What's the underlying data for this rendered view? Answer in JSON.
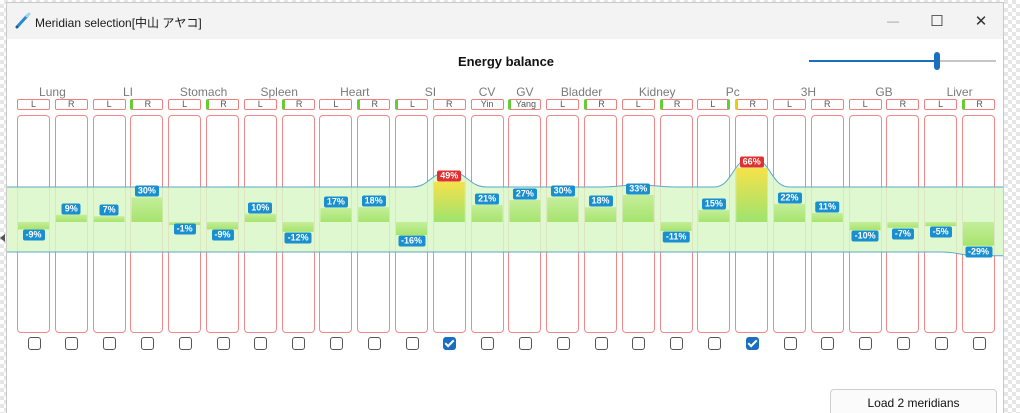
{
  "window": {
    "title": "Meridian selection[中山 アヤコ]"
  },
  "window_controls": {
    "minimize": "—",
    "maximize": "☐",
    "close": "✕"
  },
  "header": {
    "title": "Energy balance"
  },
  "slider": {
    "value": 0.58
  },
  "colors": {
    "accent": "#1a6fc0",
    "band_fill": "#d9f7c8",
    "band_edge": "#5aa9c8",
    "value_badge": "#1a8fd0",
    "hot_badge": "#e03030",
    "column_border": "#f08a8a"
  },
  "meridians": [
    {
      "name": "Lung",
      "sides": [
        "L",
        "R"
      ],
      "values": [
        -9,
        9
      ],
      "checked": [
        false,
        false
      ]
    },
    {
      "name": "LI",
      "sides": [
        "L",
        "R"
      ],
      "values": [
        7,
        30
      ],
      "checked": [
        false,
        false
      ]
    },
    {
      "name": "Stomach",
      "sides": [
        "L",
        "R"
      ],
      "values": [
        -1,
        -9
      ],
      "checked": [
        false,
        false
      ]
    },
    {
      "name": "Spleen",
      "sides": [
        "L",
        "R"
      ],
      "values": [
        10,
        -12
      ],
      "checked": [
        false,
        false
      ]
    },
    {
      "name": "Heart",
      "sides": [
        "L",
        "R"
      ],
      "values": [
        17,
        18
      ],
      "checked": [
        false,
        false
      ]
    },
    {
      "name": "SI",
      "sides": [
        "L",
        "R"
      ],
      "values": [
        -16,
        49
      ],
      "checked": [
        false,
        true
      ]
    },
    {
      "name": "CV",
      "sides": [
        "Yin"
      ],
      "values": [
        21
      ],
      "checked": [
        false
      ]
    },
    {
      "name": "GV",
      "sides": [
        "Yang"
      ],
      "values": [
        27
      ],
      "checked": [
        false
      ]
    },
    {
      "name": "Bladder",
      "sides": [
        "L",
        "R"
      ],
      "values": [
        30,
        18
      ],
      "checked": [
        false,
        false
      ]
    },
    {
      "name": "Kidney",
      "sides": [
        "L",
        "R"
      ],
      "values": [
        33,
        -11
      ],
      "checked": [
        false,
        false
      ]
    },
    {
      "name": "Pc",
      "sides": [
        "L",
        "R"
      ],
      "values": [
        15,
        66
      ],
      "checked": [
        false,
        true
      ]
    },
    {
      "name": "3H",
      "sides": [
        "L",
        "R"
      ],
      "values": [
        22,
        11
      ],
      "checked": [
        false,
        false
      ]
    },
    {
      "name": "GB",
      "sides": [
        "L",
        "R"
      ],
      "values": [
        -10,
        -7
      ],
      "checked": [
        false,
        false
      ]
    },
    {
      "name": "Liver",
      "sides": [
        "L",
        "R"
      ],
      "values": [
        -5,
        -29
      ],
      "checked": [
        false,
        false
      ]
    }
  ],
  "footer": {
    "load_label": "Load 2 meridians"
  }
}
